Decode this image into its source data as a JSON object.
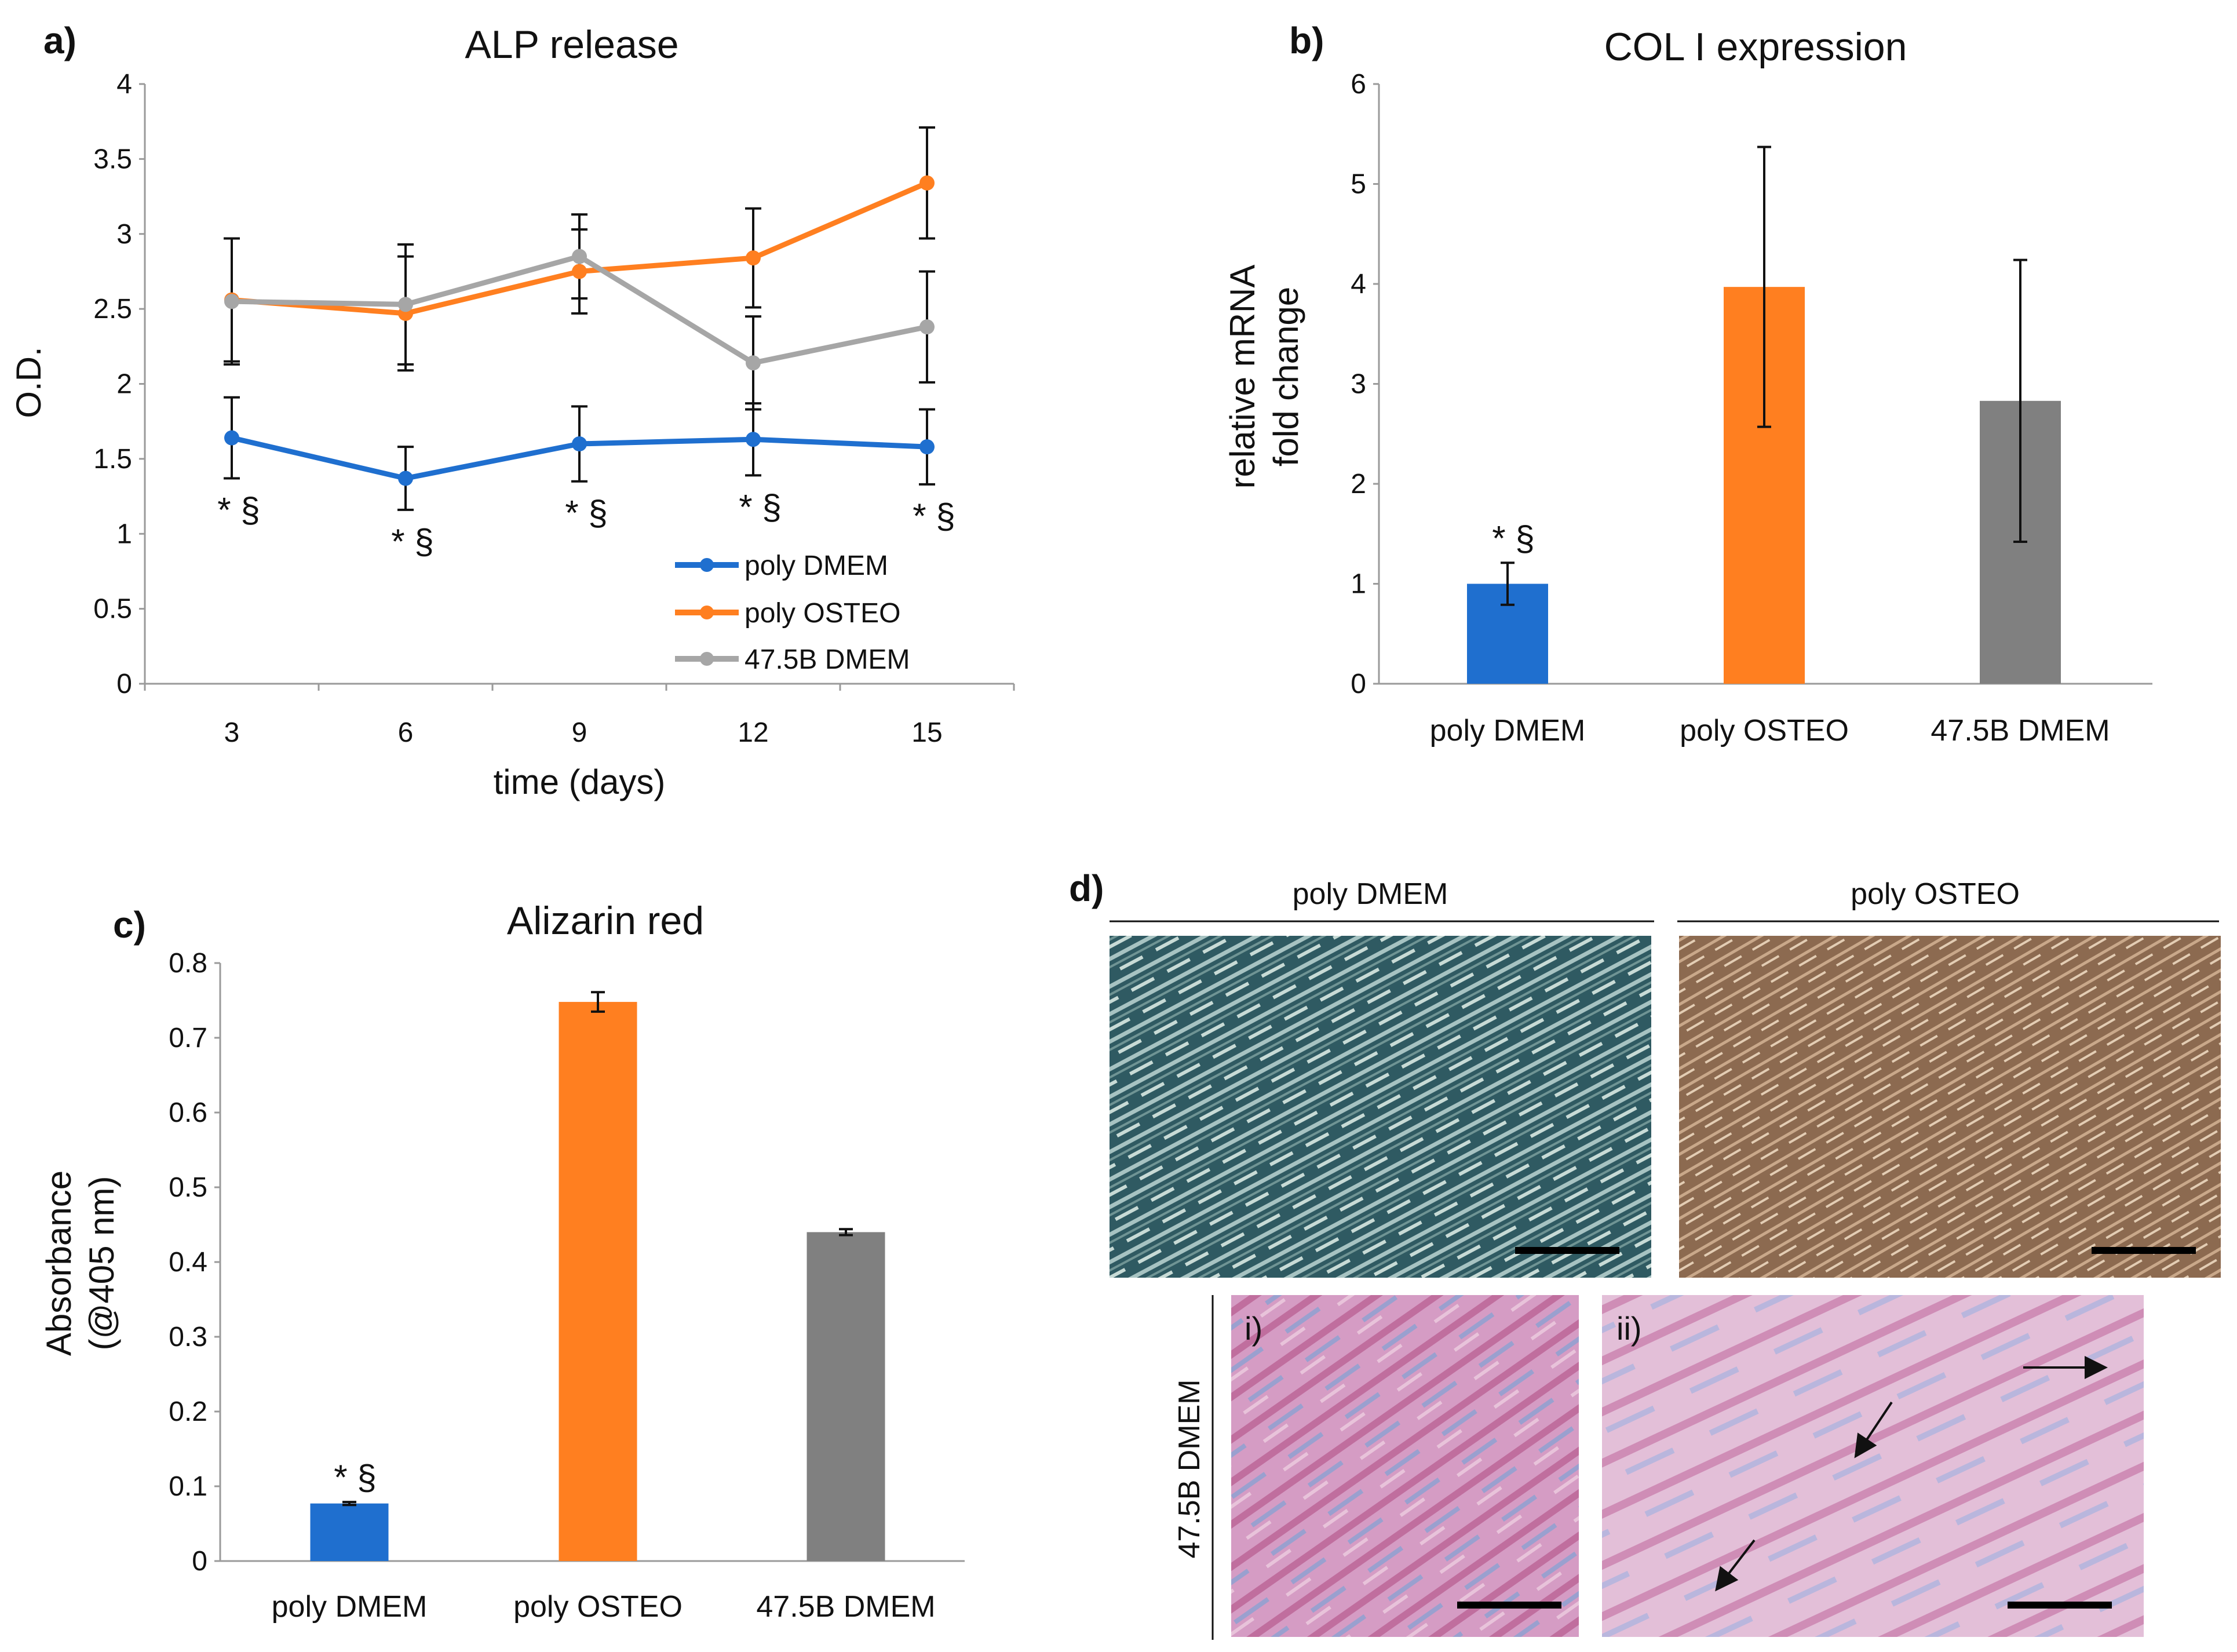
{
  "colors": {
    "poly_dmem": "#1f6fcf",
    "poly_osteo": "#ff7f20",
    "b_dmem_line": "#a6a6a6",
    "b_dmem_bar": "#808080"
  },
  "panels": {
    "a_label": "a)",
    "b_label": "b)",
    "c_label": "c)",
    "d_label": "d)"
  },
  "chart_data": [
    {
      "id": "a",
      "type": "line",
      "title": "ALP release",
      "xlabel": "time (days)",
      "ylabel": "O.D.",
      "x": [
        3,
        6,
        9,
        12,
        15
      ],
      "x_ticks": [
        "3",
        "6",
        "9",
        "12",
        "15"
      ],
      "ylim": [
        0,
        4
      ],
      "y_ticks": [
        "0",
        "0.5",
        "1",
        "1.5",
        "2",
        "2.5",
        "3",
        "3.5",
        "4"
      ],
      "series": [
        {
          "name": "poly DMEM",
          "color": "#1f6fcf",
          "values": [
            1.64,
            1.37,
            1.6,
            1.63,
            1.58
          ],
          "errors": [
            0.27,
            0.21,
            0.25,
            0.24,
            0.25
          ]
        },
        {
          "name": "poly OSTEO",
          "color": "#ff7f20",
          "values": [
            2.56,
            2.47,
            2.75,
            2.84,
            3.34
          ],
          "errors": [
            0.41,
            0.38,
            0.28,
            0.33,
            0.37
          ]
        },
        {
          "name": "47.5B DMEM",
          "color": "#a6a6a6",
          "values": [
            2.55,
            2.53,
            2.85,
            2.14,
            2.38
          ],
          "errors": [
            0.42,
            0.4,
            0.28,
            0.31,
            0.37
          ]
        }
      ],
      "annotations": [
        "* §",
        "* §",
        "* §",
        "* §",
        "* §"
      ]
    },
    {
      "id": "b",
      "type": "bar",
      "title": "COL I expression",
      "ylabel_line1": "relative mRNA",
      "ylabel_line2": "fold change",
      "categories": [
        "poly DMEM",
        "poly OSTEO",
        "47.5B DMEM"
      ],
      "values": [
        1.0,
        3.97,
        2.83
      ],
      "errors": [
        0.21,
        1.4,
        1.41
      ],
      "colors": [
        "#1f6fcf",
        "#ff7f20",
        "#808080"
      ],
      "ylim": [
        0,
        6
      ],
      "y_ticks": [
        "0",
        "1",
        "2",
        "3",
        "4",
        "5",
        "6"
      ],
      "annotation": "* §"
    },
    {
      "id": "c",
      "type": "bar",
      "title": "Alizarin red",
      "ylabel_line1": "Absorbance",
      "ylabel_line2": "(@405 nm)",
      "categories": [
        "poly DMEM",
        "poly OSTEO",
        "47.5B DMEM"
      ],
      "values": [
        0.077,
        0.748,
        0.44
      ],
      "errors": [
        0.002,
        0.013,
        0.004
      ],
      "colors": [
        "#1f6fcf",
        "#ff7f20",
        "#808080"
      ],
      "ylim": [
        0,
        0.8
      ],
      "y_ticks": [
        "0",
        "0.1",
        "0.2",
        "0.3",
        "0.4",
        "0.5",
        "0.6",
        "0.7",
        "0.8"
      ],
      "annotation": "* §"
    }
  ],
  "micrographs": {
    "top_left_header": "poly DMEM",
    "top_right_header": "poly OSTEO",
    "bottom_side_label": "47.5B DMEM",
    "sub_i": "i)",
    "sub_ii": "ii)"
  }
}
